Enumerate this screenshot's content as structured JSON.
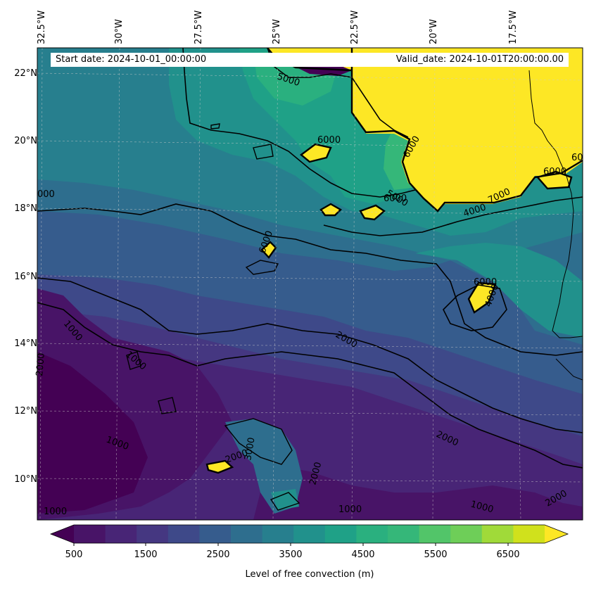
{
  "map": {
    "start_date": "Start date: 2024-10-01_00:00:00",
    "valid_date": "Valid_date: 2024-10-01T20:00:00.00",
    "longitude_labels": [
      "32.5°W",
      "30°W",
      "27.5°W",
      "25°W",
      "22.5°W",
      "20°W",
      "17.5°W"
    ],
    "latitude_labels": [
      "22°N",
      "20°N",
      "18°N",
      "16°N",
      "14°N",
      "12°N",
      "10°N"
    ],
    "contour_labels": [
      "5000",
      "6000",
      "6000",
      "5000",
      "6000",
      "7000",
      "4000",
      "6000",
      "6000",
      "6000",
      "4000",
      "1000",
      "1000",
      "2000",
      "2000",
      "1000",
      "2000",
      "1000",
      "3000",
      "2000",
      "1000",
      "1000",
      "2000",
      "2000",
      "000",
      "60"
    ]
  },
  "colorbar": {
    "tick_labels": [
      "500",
      "1500",
      "2500",
      "3500",
      "4500",
      "5500",
      "6500"
    ],
    "label": "Level of free convection (m)",
    "colors": [
      "#440154",
      "#481467",
      "#482576",
      "#453781",
      "#3e4989",
      "#365c8d",
      "#2e6e8e",
      "#277f8e",
      "#21918c",
      "#1fa187",
      "#2ab07f",
      "#35b779",
      "#52c569",
      "#6ece58",
      "#a0da39",
      "#d0e11c",
      "#fde725"
    ]
  },
  "legend": {
    "colormap": "viridis",
    "extend": "both"
  }
}
